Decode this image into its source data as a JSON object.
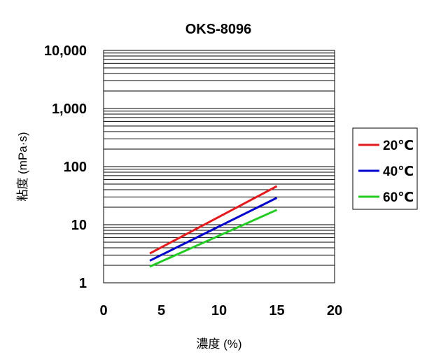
{
  "chart_data": {
    "type": "line",
    "title": "OKS-8096",
    "xlabel": "濃度 (%)",
    "ylabel": "粘度 (mPa·s)",
    "xlim": [
      0,
      20
    ],
    "ylim": [
      1,
      10000
    ],
    "yscale": "log",
    "xticks": [
      "0",
      "5",
      "10",
      "15",
      "20"
    ],
    "yticks": [
      "1",
      "10",
      "100",
      "1,000",
      "10,000"
    ],
    "grid": true,
    "legend_position": "right",
    "series": [
      {
        "name": "20℃",
        "color": "#e41a1c",
        "x": [
          4,
          15
        ],
        "y": [
          3.2,
          46
        ]
      },
      {
        "name": "40℃",
        "color": "#0000cc",
        "x": [
          4,
          15
        ],
        "y": [
          2.4,
          29
        ]
      },
      {
        "name": "60℃",
        "color": "#22cc22",
        "x": [
          4,
          15
        ],
        "y": [
          1.9,
          18
        ]
      }
    ]
  }
}
